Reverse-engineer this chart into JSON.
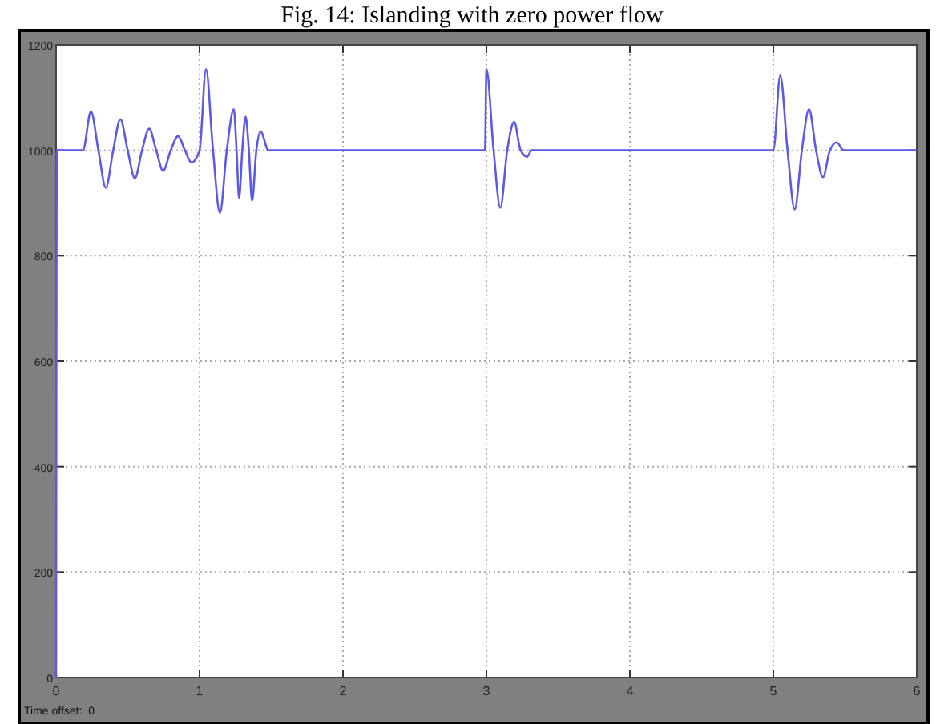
{
  "chart_data": {
    "type": "line",
    "title": "Fig. 14: Islanding with zero power flow",
    "annotations": [
      "Time offset:  0"
    ],
    "x": [
      0,
      0.005,
      0.187,
      0.243,
      0.295,
      0.347,
      0.398,
      0.448,
      0.499,
      0.549,
      0.599,
      0.649,
      0.698,
      0.746,
      0.799,
      0.851,
      0.898,
      0.944,
      1.0,
      1.045,
      1.094,
      1.142,
      1.19,
      1.239,
      1.258,
      1.276,
      1.298,
      1.321,
      1.344,
      1.366,
      1.396,
      1.425,
      1.481,
      2.99,
      3.0,
      3.05,
      3.097,
      3.145,
      3.193,
      3.238,
      3.283,
      3.316,
      5.0,
      5.048,
      5.099,
      5.149,
      5.199,
      5.249,
      5.298,
      5.346,
      5.394,
      5.442,
      5.491,
      6
    ],
    "series": [
      {
        "color": "#5a5ae6",
        "values": [
          0,
          1000,
          1000,
          1074,
          1000,
          929,
          1000,
          1059,
          1000,
          947,
          1000,
          1041,
          1000,
          961,
          1000,
          1027,
          1000,
          977,
          1000,
          1154,
          1000,
          881,
          1000,
          1078,
          1000,
          909,
          1000,
          1064,
          1000,
          904,
          1000,
          1036,
          1000,
          1000,
          1154,
          1000,
          891,
          1000,
          1054,
          1000,
          988,
          1000,
          1000,
          1142,
          1000,
          888,
          1000,
          1078,
          1000,
          949,
          1000,
          1015,
          1000,
          1000
        ]
      }
    ],
    "xlim": [
      0,
      6
    ],
    "xticks": [
      0,
      1,
      2,
      3,
      4,
      5,
      6
    ],
    "ylim": [
      0,
      1200
    ],
    "yticks": [
      0,
      200,
      400,
      600,
      800,
      1000,
      1200
    ],
    "grid": true
  }
}
